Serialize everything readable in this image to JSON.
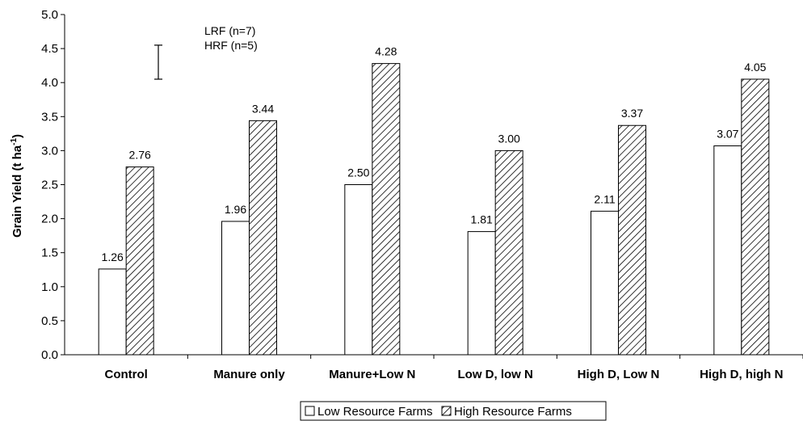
{
  "chart_data": {
    "type": "bar",
    "ylabel_main": "Grain Yield (t ha",
    "ylabel_sup": "-1",
    "ylabel_close": ")",
    "categories": [
      "Control",
      "Manure only",
      "Manure+Low N",
      "Low D, low N",
      "High D, Low N",
      "High D, high N"
    ],
    "series": [
      {
        "name": "Low Resource Farms",
        "values": [
          1.26,
          1.96,
          2.5,
          1.81,
          2.11,
          3.07
        ]
      },
      {
        "name": "High Resource Farms",
        "values": [
          2.76,
          3.44,
          4.28,
          3.0,
          3.37,
          4.05
        ]
      }
    ],
    "ylim": [
      0,
      5
    ],
    "yticks": [
      "0.0",
      "0.5",
      "1.0",
      "1.5",
      "2.0",
      "2.5",
      "3.0",
      "3.5",
      "4.0",
      "4.5",
      "5.0"
    ],
    "annotations": [
      "LRF (n=7)",
      "HRF (n=5)"
    ],
    "error_bar": {
      "low": 4.05,
      "high": 4.55
    },
    "legend_position": "bottom",
    "grid": false,
    "series_styles": [
      "white fill",
      "diagonal hatch"
    ]
  }
}
